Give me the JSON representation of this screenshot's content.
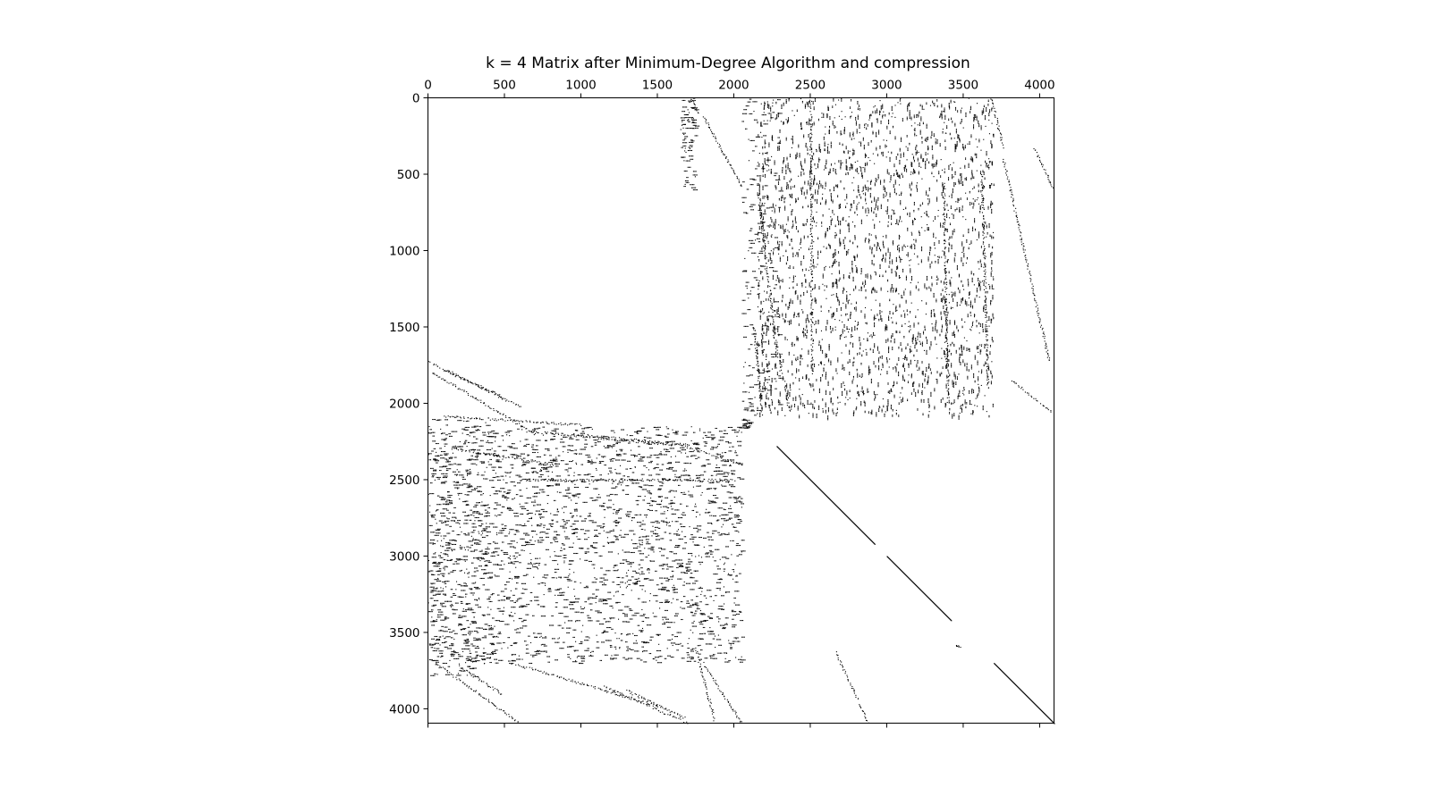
{
  "chart_data": {
    "type": "spy",
    "title": "k = 4 Matrix after Minimum-Degree Algorithm and compression",
    "matrix_size": 4094,
    "x_ticks": [
      0,
      500,
      1000,
      1500,
      2000,
      2500,
      3000,
      3500,
      4000
    ],
    "y_ticks": [
      0,
      500,
      1000,
      1500,
      2000,
      2500,
      3000,
      3500,
      4000
    ],
    "x_tick_labels": [
      "0",
      "500",
      "1000",
      "1500",
      "2000",
      "2500",
      "3000",
      "3500",
      "4000"
    ],
    "y_tick_labels": [
      "0",
      "500",
      "1000",
      "1500",
      "2000",
      "2500",
      "3000",
      "3500",
      "4000"
    ],
    "xlim": [
      0,
      4094
    ],
    "ylim": [
      4094,
      0
    ],
    "x_axis_position": "top",
    "marker_color": "#000000",
    "background": "#ffffff",
    "grid": false,
    "diagonal_segments": [
      {
        "from": [
          2280,
          2280
        ],
        "to": [
          2920,
          2920
        ]
      },
      {
        "from": [
          3000,
          3000
        ],
        "to": [
          3420,
          3420
        ]
      },
      {
        "from": [
          3700,
          3700
        ],
        "to": [
          4094,
          4094
        ]
      }
    ],
    "bands": [
      {
        "from": [
          1800,
          120
        ],
        "to": [
          2050,
          580
        ]
      },
      {
        "from": [
          1720,
          0
        ],
        "to": [
          1760,
          100
        ]
      },
      {
        "from": [
          2160,
          620
        ],
        "to": [
          2280,
          1700
        ]
      },
      {
        "from": [
          2130,
          1500
        ],
        "to": [
          2180,
          2050
        ]
      },
      {
        "from": [
          2280,
          1600
        ],
        "to": [
          2360,
          2050
        ]
      },
      {
        "from": [
          2500,
          0
        ],
        "to": [
          2510,
          1800
        ]
      },
      {
        "from": [
          3370,
          550
        ],
        "to": [
          3400,
          2000
        ]
      },
      {
        "from": [
          3620,
          500
        ],
        "to": [
          3660,
          1900
        ]
      },
      {
        "from": [
          3680,
          0
        ],
        "to": [
          3760,
          320
        ]
      },
      {
        "from": [
          3760,
          400
        ],
        "to": [
          4060,
          1720
        ]
      },
      {
        "from": [
          3820,
          1850
        ],
        "to": [
          4070,
          2050
        ]
      },
      {
        "from": [
          3960,
          320
        ],
        "to": [
          4090,
          600
        ]
      },
      {
        "from": [
          0,
          1720
        ],
        "to": [
          600,
          2020
        ]
      },
      {
        "from": [
          100,
          1780
        ],
        "to": [
          480,
          1950
        ]
      },
      {
        "from": [
          0,
          1780
        ],
        "to": [
          700,
          2200
        ]
      },
      {
        "from": [
          100,
          2080
        ],
        "to": [
          1000,
          2140
        ]
      },
      {
        "from": [
          650,
          2180
        ],
        "to": [
          1600,
          2270
        ]
      },
      {
        "from": [
          950,
          2200
        ],
        "to": [
          1700,
          2270
        ]
      },
      {
        "from": [
          1620,
          2260
        ],
        "to": [
          2050,
          2400
        ]
      },
      {
        "from": [
          150,
          2290
        ],
        "to": [
          820,
          2400
        ]
      },
      {
        "from": [
          600,
          2500
        ],
        "to": [
          2000,
          2500
        ]
      },
      {
        "from": [
          50,
          3700
        ],
        "to": [
          600,
          4094
        ]
      },
      {
        "from": [
          200,
          3720
        ],
        "to": [
          480,
          3900
        ]
      },
      {
        "from": [
          550,
          3700
        ],
        "to": [
          1500,
          3980
        ]
      },
      {
        "from": [
          1150,
          3850
        ],
        "to": [
          1700,
          4094
        ]
      },
      {
        "from": [
          1300,
          3880
        ],
        "to": [
          1680,
          4060
        ]
      },
      {
        "from": [
          1750,
          3600
        ],
        "to": [
          1870,
          4070
        ]
      },
      {
        "from": [
          1800,
          3700
        ],
        "to": [
          2050,
          4094
        ]
      },
      {
        "from": [
          2660,
          3620
        ],
        "to": [
          2880,
          4094
        ]
      },
      {
        "from": [
          3450,
          3580
        ],
        "to": [
          3480,
          3600
        ]
      }
    ],
    "scatter_regions": [
      {
        "x": [
          2150,
          3700
        ],
        "y": [
          0,
          2080
        ],
        "density": 2400
      },
      {
        "x": [
          0,
          2050
        ],
        "y": [
          2150,
          3700
        ],
        "density": 2400
      },
      {
        "x": [
          1650,
          1750
        ],
        "y": [
          0,
          600
        ],
        "density": 80
      },
      {
        "x": [
          2050,
          2300
        ],
        "y": [
          0,
          2100
        ],
        "density": 200
      },
      {
        "x": [
          0,
          400
        ],
        "y": [
          2100,
          3800
        ],
        "density": 300
      },
      {
        "x": [
          2050,
          2100
        ],
        "y": [
          2100,
          2160
        ],
        "density": 20
      }
    ]
  }
}
